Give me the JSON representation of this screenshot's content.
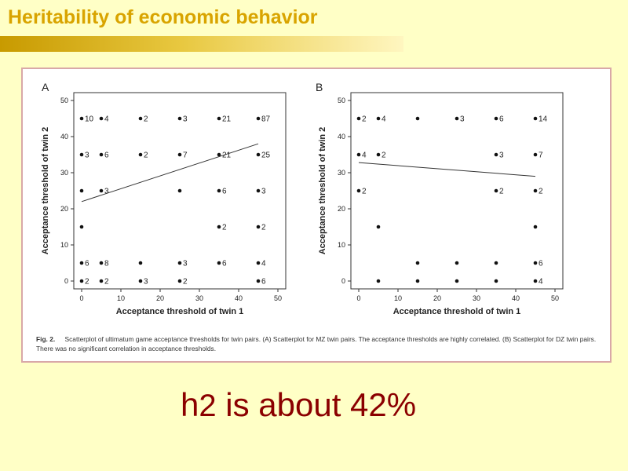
{
  "slide": {
    "title": "Heritability of economic behavior",
    "bottom_prefix": "h",
    "bottom_sup": "2",
    "bottom_rest": " is about 42%"
  },
  "caption": {
    "fig_label": "Fig. 2.",
    "text": "Scatterplot of ultimatum game acceptance thresholds for twin pairs. (A) Scatterplot for MZ twin pairs. The acceptance thresholds are highly correlated. (B) Scatterplot for DZ twin pairs. There was no significant correlation in acceptance thresholds."
  },
  "colors": {
    "title": "#d9a400",
    "bottom_text": "#8b0000",
    "background": "#ffffc6",
    "frame_border": "#d9a8a8"
  },
  "chart_data": [
    {
      "type": "scatter",
      "panel_label": "A",
      "xlabel": "Acceptance threshold of twin 1",
      "ylabel": "Acceptance threshold of twin 2",
      "xlim": [
        0,
        50
      ],
      "ylim": [
        0,
        50
      ],
      "xticks": [
        0,
        10,
        20,
        30,
        40,
        50
      ],
      "yticks": [
        0,
        10,
        20,
        30,
        40,
        50
      ],
      "points": [
        {
          "x": 0,
          "y": 45,
          "label": "10"
        },
        {
          "x": 5,
          "y": 45,
          "label": "4"
        },
        {
          "x": 15,
          "y": 45,
          "label": "2"
        },
        {
          "x": 25,
          "y": 45,
          "label": "3"
        },
        {
          "x": 35,
          "y": 45,
          "label": "21"
        },
        {
          "x": 45,
          "y": 45,
          "label": "87"
        },
        {
          "x": 0,
          "y": 35,
          "label": "3"
        },
        {
          "x": 5,
          "y": 35,
          "label": "6"
        },
        {
          "x": 15,
          "y": 35,
          "label": "2"
        },
        {
          "x": 25,
          "y": 35,
          "label": "7"
        },
        {
          "x": 35,
          "y": 35,
          "label": "21"
        },
        {
          "x": 45,
          "y": 35,
          "label": "25"
        },
        {
          "x": 0,
          "y": 25,
          "label": ""
        },
        {
          "x": 5,
          "y": 25,
          "label": "3"
        },
        {
          "x": 25,
          "y": 25,
          "label": ""
        },
        {
          "x": 35,
          "y": 25,
          "label": "6"
        },
        {
          "x": 45,
          "y": 25,
          "label": "3"
        },
        {
          "x": 0,
          "y": 15,
          "label": ""
        },
        {
          "x": 35,
          "y": 15,
          "label": "2"
        },
        {
          "x": 45,
          "y": 15,
          "label": "2"
        },
        {
          "x": 0,
          "y": 5,
          "label": "6"
        },
        {
          "x": 5,
          "y": 5,
          "label": "8"
        },
        {
          "x": 15,
          "y": 5,
          "label": ""
        },
        {
          "x": 25,
          "y": 5,
          "label": "3"
        },
        {
          "x": 35,
          "y": 5,
          "label": "6"
        },
        {
          "x": 45,
          "y": 5,
          "label": "4"
        },
        {
          "x": 0,
          "y": 0,
          "label": "2"
        },
        {
          "x": 5,
          "y": 0,
          "label": "2"
        },
        {
          "x": 15,
          "y": 0,
          "label": "3"
        },
        {
          "x": 25,
          "y": 0,
          "label": "2"
        },
        {
          "x": 45,
          "y": 0,
          "label": "6"
        }
      ],
      "fit_line": {
        "x": [
          0,
          45
        ],
        "y": [
          22,
          38
        ]
      }
    },
    {
      "type": "scatter",
      "panel_label": "B",
      "xlabel": "Acceptance threshold of twin 1",
      "ylabel": "Acceptance threshold of twin 2",
      "xlim": [
        0,
        50
      ],
      "ylim": [
        0,
        50
      ],
      "xticks": [
        0,
        10,
        20,
        30,
        40,
        50
      ],
      "yticks": [
        0,
        10,
        20,
        30,
        40,
        50
      ],
      "points": [
        {
          "x": 0,
          "y": 45,
          "label": "2"
        },
        {
          "x": 5,
          "y": 45,
          "label": "4"
        },
        {
          "x": 15,
          "y": 45,
          "label": ""
        },
        {
          "x": 25,
          "y": 45,
          "label": "3"
        },
        {
          "x": 35,
          "y": 45,
          "label": "6"
        },
        {
          "x": 45,
          "y": 45,
          "label": "14"
        },
        {
          "x": 0,
          "y": 35,
          "label": "4"
        },
        {
          "x": 5,
          "y": 35,
          "label": "2"
        },
        {
          "x": 35,
          "y": 35,
          "label": "3"
        },
        {
          "x": 45,
          "y": 35,
          "label": "7"
        },
        {
          "x": 0,
          "y": 25,
          "label": "2"
        },
        {
          "x": 35,
          "y": 25,
          "label": "2"
        },
        {
          "x": 45,
          "y": 25,
          "label": "2"
        },
        {
          "x": 5,
          "y": 15,
          "label": ""
        },
        {
          "x": 45,
          "y": 15,
          "label": ""
        },
        {
          "x": 15,
          "y": 5,
          "label": ""
        },
        {
          "x": 25,
          "y": 5,
          "label": ""
        },
        {
          "x": 35,
          "y": 5,
          "label": ""
        },
        {
          "x": 45,
          "y": 5,
          "label": "6"
        },
        {
          "x": 5,
          "y": 0,
          "label": ""
        },
        {
          "x": 15,
          "y": 0,
          "label": ""
        },
        {
          "x": 25,
          "y": 0,
          "label": ""
        },
        {
          "x": 35,
          "y": 0,
          "label": ""
        },
        {
          "x": 45,
          "y": 0,
          "label": "4"
        }
      ],
      "fit_line": {
        "x": [
          0,
          45
        ],
        "y": [
          32.8,
          29
        ]
      }
    }
  ]
}
